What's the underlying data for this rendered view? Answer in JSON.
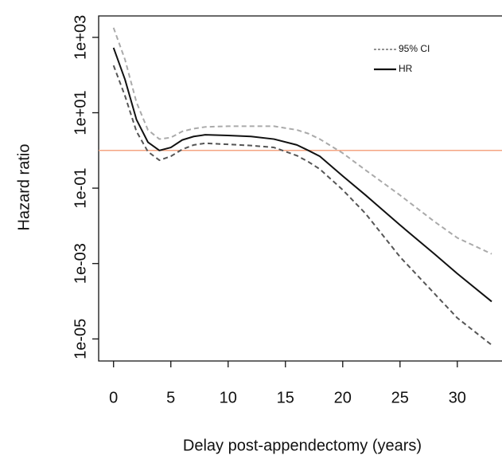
{
  "chart_data": {
    "type": "line",
    "xlabel": "Delay post-appendectomy (years)",
    "ylabel": "Hazard ratio",
    "x": [
      0,
      1,
      2,
      3,
      4,
      5,
      6,
      7,
      8,
      10,
      12,
      14,
      16,
      17,
      18,
      20,
      22,
      25,
      28,
      30,
      33
    ],
    "series": [
      {
        "name": "HR",
        "color": "#111111",
        "dash": false,
        "values": [
          530,
          76,
          6.6,
          1.66,
          1.0,
          1.2,
          1.9,
          2.35,
          2.6,
          2.5,
          2.35,
          2.0,
          1.4,
          1.0,
          0.7,
          0.21,
          0.065,
          0.0105,
          0.0018,
          0.00054,
          9.8e-05
        ]
      }
    ],
    "ci": {
      "name": "95% CI",
      "dash": true,
      "colors": [
        "#aaaaaa",
        "#555555"
      ],
      "upper": [
        1800,
        257,
        19,
        3.5,
        2.0,
        2.2,
        3.2,
        3.8,
        4.2,
        4.4,
        4.4,
        4.4,
        3.5,
        2.8,
        2.0,
        0.85,
        0.3,
        0.065,
        0.013,
        0.0048,
        0.0018
      ],
      "lower": [
        180,
        28,
        3.2,
        0.93,
        0.55,
        0.7,
        1.07,
        1.4,
        1.55,
        1.45,
        1.35,
        1.2,
        0.73,
        0.5,
        0.32,
        0.09,
        0.021,
        0.0015,
        0.00016,
        3.6e-05,
        6.9e-06
      ]
    },
    "reference_line": {
      "value": 1,
      "color": "#f4a582"
    },
    "xlim": [
      -1.3,
      33.9
    ],
    "ylim": [
      2.6e-06,
      3700
    ],
    "ylog": true,
    "xticks": [
      0,
      5,
      10,
      15,
      20,
      25,
      30
    ],
    "yticks": [
      {
        "value": 1000,
        "label": "1e+03"
      },
      {
        "value": 10,
        "label": "1e+01"
      },
      {
        "value": 0.1,
        "label": "1e-01"
      },
      {
        "value": 0.001,
        "label": "1e-03"
      },
      {
        "value": 1e-05,
        "label": "1e-05"
      }
    ],
    "legend": "top-right"
  }
}
